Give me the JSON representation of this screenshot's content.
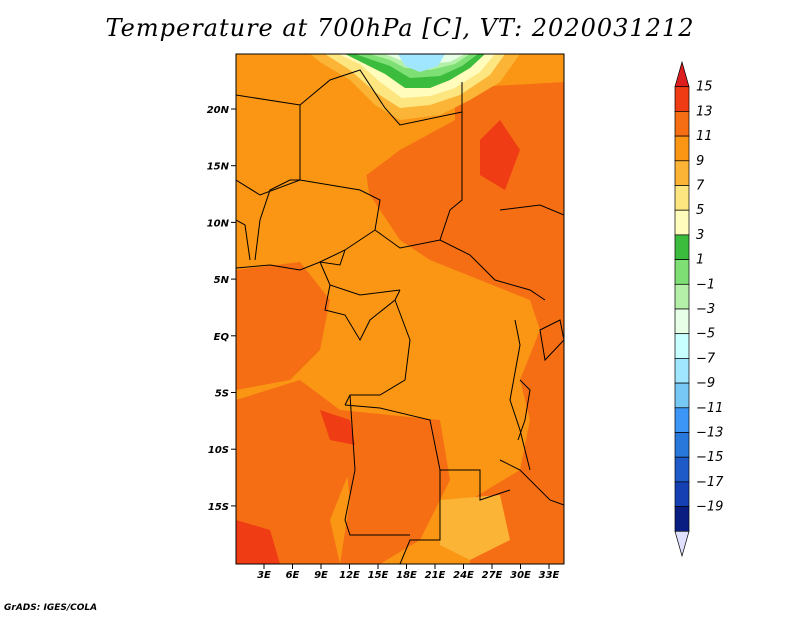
{
  "title": "Temperature at 700hPa [C], VT: 2020031212",
  "credit": "GrADS: IGES/COLA",
  "map": {
    "lat_labels": [
      "20N",
      "15N",
      "10N",
      "5N",
      "EQ",
      "5S",
      "10S",
      "15S"
    ],
    "lon_labels": [
      "3E",
      "6E",
      "9E",
      "12E",
      "15E",
      "18E",
      "21E",
      "24E",
      "27E",
      "30E",
      "33E"
    ]
  },
  "colorbar": {
    "labels": [
      "15",
      "13",
      "11",
      "9",
      "7",
      "5",
      "3",
      "1",
      "−1",
      "−3",
      "−5",
      "−7",
      "−9",
      "−11",
      "−13",
      "−15",
      "−17",
      "−19"
    ],
    "colors": [
      "#dc1e1e",
      "#f03c14",
      "#f56e14",
      "#fa9614",
      "#fbb436",
      "#fde680",
      "#fffcbc",
      "#3cbc3d",
      "#7ee074",
      "#b4f0a8",
      "#e6ffe6",
      "#c8ffff",
      "#a0e6ff",
      "#78c8f5",
      "#3c96f5",
      "#2878dc",
      "#1e5ac8",
      "#1440b4",
      "#0a1e82",
      "#e0e0ff"
    ]
  }
}
